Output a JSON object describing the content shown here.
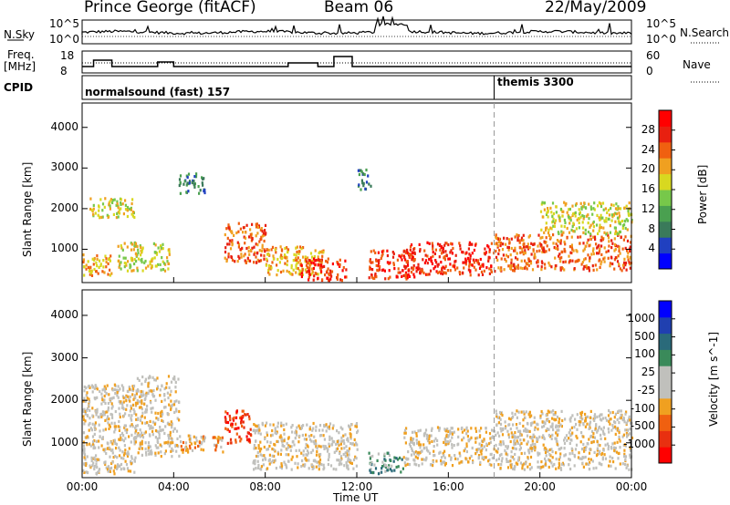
{
  "header": {
    "station": "Prince George (fitACF)",
    "beam": "Beam 06",
    "date": "22/May/2009"
  },
  "strip_labels": {
    "nsky": "N.Sky",
    "nsky_top": "10^5",
    "nsky_bottom": "10^0",
    "nsearch": "N.Search",
    "nsearch_top": "10^5",
    "nsearch_bottom": "10^0",
    "freq": "Freq.",
    "freq_unit": "[MHz]",
    "freq_top": "18",
    "freq_bottom": "8",
    "nave": "Nave",
    "nave_top": "60",
    "nave_bottom": "0",
    "cpid": "CPID",
    "cpid1": "normalsound (fast) 157",
    "cpid2": "themis 3300"
  },
  "colors": {
    "power": [
      "#0000ff",
      "#2040c0",
      "#3a7a5a",
      "#4aa050",
      "#77c84a",
      "#d8d820",
      "#f0a020",
      "#f06010",
      "#e82010",
      "#ff0000"
    ],
    "velocity": [
      "#ff0000",
      "#e83010",
      "#f06010",
      "#f0a020",
      "#c0c0bc",
      "#c0c0bc",
      "#3a8a5a",
      "#2a6a7a",
      "#2040b0",
      "#0000ff"
    ],
    "grey_scatter": "#c0c0bc"
  },
  "chart_data": [
    {
      "type": "heatmap",
      "title": "",
      "xlabel": "",
      "ylabel": "Slant Range [km]",
      "x_ticks": [
        "00:00",
        "04:00",
        "08:00",
        "12:00",
        "16:00",
        "20:00",
        "00:00"
      ],
      "y_ticks": [
        "1000",
        "2000",
        "3000",
        "4000"
      ],
      "xlim": [
        0,
        24
      ],
      "ylim": [
        180,
        4600
      ],
      "colorbar_label": "Power [dB]",
      "colorbar_ticks": [
        "4",
        "8",
        "12",
        "16",
        "20",
        "24",
        "28"
      ],
      "scatter_bands": [
        {
          "t0": 0.0,
          "t1": 1.3,
          "r0": 350,
          "r1": 900,
          "level": 6
        },
        {
          "t0": 0.3,
          "t1": 2.3,
          "r0": 1800,
          "r1": 2300,
          "level": 5
        },
        {
          "t0": 1.5,
          "t1": 3.8,
          "r0": 500,
          "r1": 1200,
          "level": 5
        },
        {
          "t0": 4.2,
          "t1": 5.4,
          "r0": 2400,
          "r1": 2900,
          "level": 2
        },
        {
          "t0": 6.2,
          "t1": 8.0,
          "r0": 700,
          "r1": 1700,
          "level": 7
        },
        {
          "t0": 8.0,
          "t1": 10.5,
          "r0": 400,
          "r1": 1100,
          "level": 6
        },
        {
          "t0": 9.5,
          "t1": 11.5,
          "r0": 250,
          "r1": 800,
          "level": 8
        },
        {
          "t0": 12.0,
          "t1": 12.6,
          "r0": 2500,
          "r1": 3000,
          "level": 2
        },
        {
          "t0": 12.5,
          "t1": 14.5,
          "r0": 300,
          "r1": 1000,
          "level": 8
        },
        {
          "t0": 14.0,
          "t1": 18.0,
          "r0": 400,
          "r1": 1200,
          "level": 8
        },
        {
          "t0": 18.0,
          "t1": 24.0,
          "r0": 500,
          "r1": 1400,
          "level": 7
        },
        {
          "t0": 20.0,
          "t1": 24.0,
          "r0": 1400,
          "r1": 2200,
          "level": 5
        }
      ]
    },
    {
      "type": "heatmap",
      "title": "",
      "xlabel": "Time UT",
      "ylabel": "Slant Range [km]",
      "x_ticks": [
        "00:00",
        "04:00",
        "08:00",
        "12:00",
        "16:00",
        "20:00",
        "00:00"
      ],
      "y_ticks": [
        "1000",
        "2000",
        "3000",
        "4000"
      ],
      "xlim": [
        0,
        24
      ],
      "ylim": [
        180,
        4600
      ],
      "colorbar_label": "Velocity [m s^-1]",
      "colorbar_ticks": [
        "1000",
        "500",
        "100",
        "25",
        "-25",
        "-100",
        "-500",
        "-1000"
      ],
      "scatter_bands": [
        {
          "t0": 0.0,
          "t1": 2.3,
          "r0": 300,
          "r1": 2400,
          "level": 4
        },
        {
          "t0": 2.3,
          "t1": 4.2,
          "r0": 700,
          "r1": 2600,
          "level": 4
        },
        {
          "t0": 4.2,
          "t1": 6.2,
          "r0": 800,
          "r1": 1200,
          "level": 3
        },
        {
          "t0": 6.2,
          "t1": 7.4,
          "r0": 1000,
          "r1": 1800,
          "level": 1
        },
        {
          "t0": 7.4,
          "t1": 12.0,
          "r0": 400,
          "r1": 1500,
          "level": 4
        },
        {
          "t0": 12.5,
          "t1": 14.0,
          "r0": 300,
          "r1": 800,
          "level": 6
        },
        {
          "t0": 14.0,
          "t1": 18.0,
          "r0": 500,
          "r1": 1400,
          "level": 4
        },
        {
          "t0": 18.0,
          "t1": 24.0,
          "r0": 400,
          "r1": 1800,
          "level": 4
        }
      ]
    }
  ]
}
